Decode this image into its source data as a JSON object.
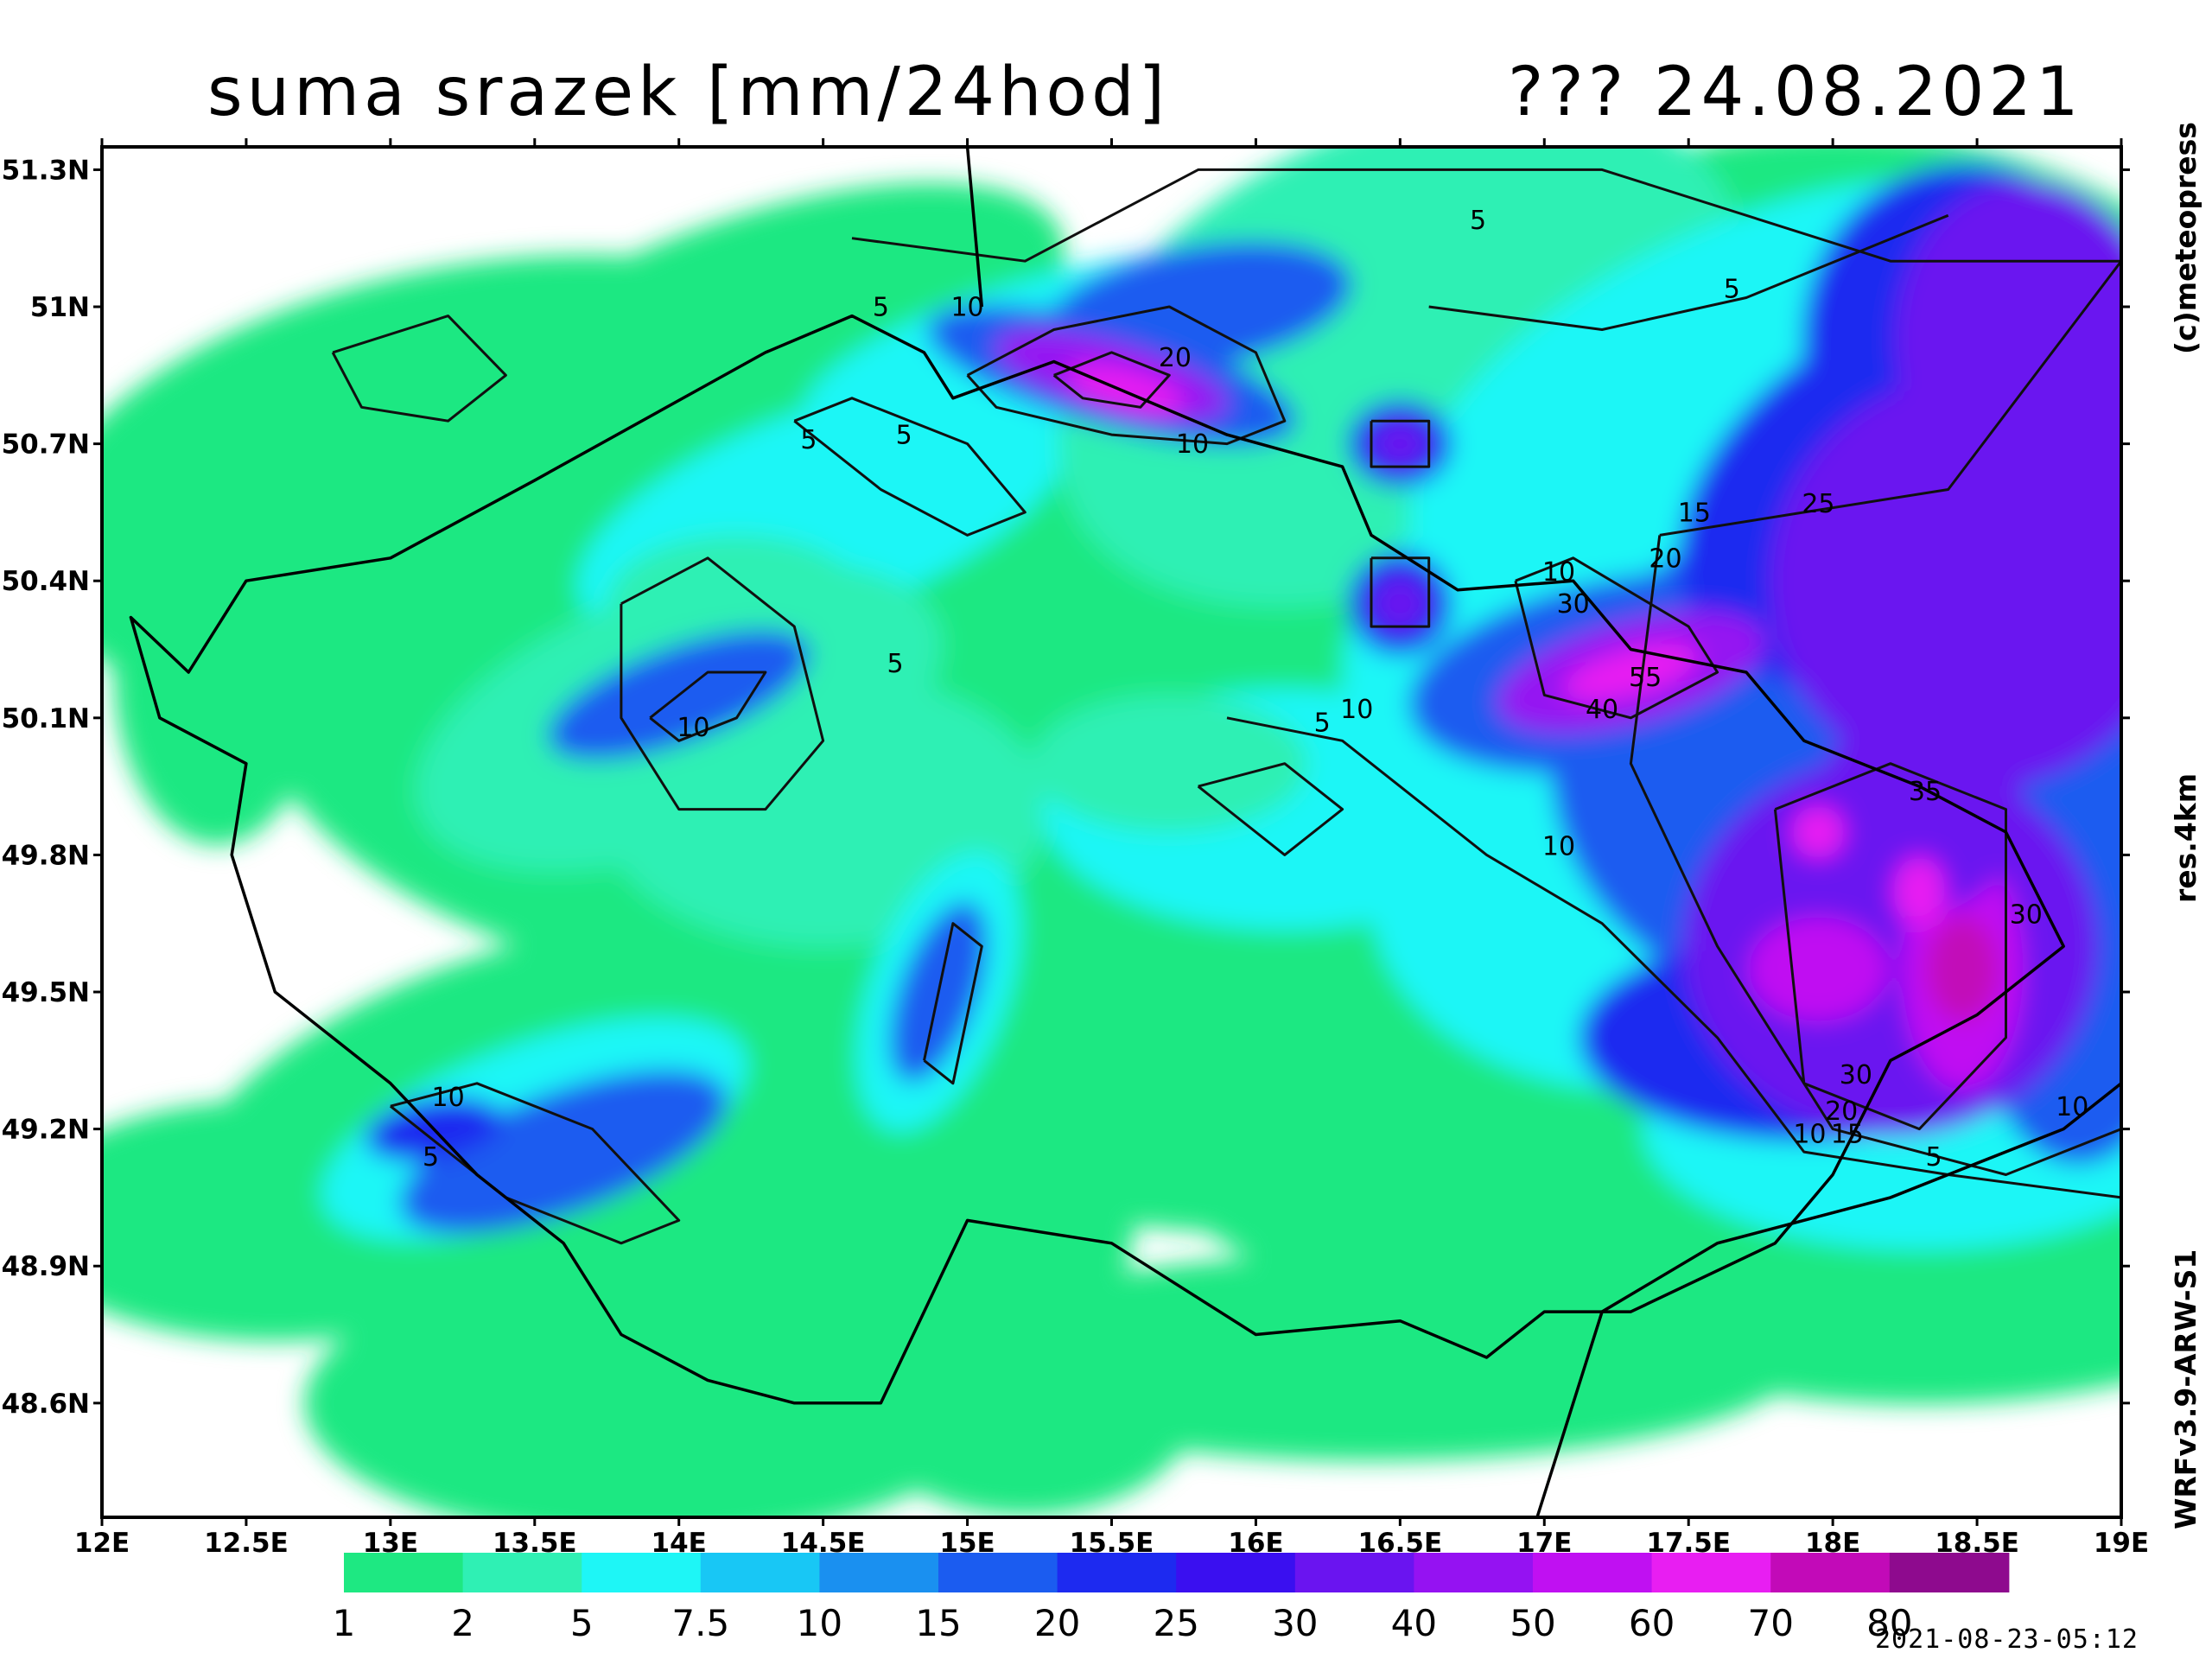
{
  "header": {
    "title_left": "suma srazek [mm/24hod]",
    "title_right": "??? 24.08.2021"
  },
  "axes": {
    "lat_ticks": [
      "51.3N",
      "51N",
      "50.7N",
      "50.4N",
      "50.1N",
      "49.8N",
      "49.5N",
      "49.2N",
      "48.9N",
      "48.6N"
    ],
    "lon_ticks": [
      "12E",
      "12.5E",
      "13E",
      "13.5E",
      "14E",
      "14.5E",
      "15E",
      "15.5E",
      "16E",
      "16.5E",
      "17E",
      "17.5E",
      "18E",
      "18.5E",
      "19E"
    ]
  },
  "side_labels": {
    "copyright": "(c)meteopress",
    "resolution": "res.4km",
    "model": "WRFv3.9-ARW-S1"
  },
  "timestamp": "2021-08-23-05:12",
  "legend": {
    "labels": [
      "1",
      "2",
      "5",
      "7.5",
      "10",
      "15",
      "20",
      "25",
      "30",
      "40",
      "50",
      "60",
      "70",
      "80"
    ],
    "colors": [
      "#1ee882",
      "#2ff0b4",
      "#1ef6f6",
      "#18c7f5",
      "#1a90f0",
      "#1b5cf0",
      "#1d2af0",
      "#3a0ff0",
      "#6a14f0",
      "#9512f2",
      "#c010f2",
      "#e81ef2",
      "#c20ab8",
      "#8e0a8e"
    ]
  },
  "contour_labels": [
    {
      "text": "5",
      "lon": 14.7,
      "lat": 50.98
    },
    {
      "text": "10",
      "lon": 15.0,
      "lat": 50.98
    },
    {
      "text": "20",
      "lon": 15.72,
      "lat": 50.87
    },
    {
      "text": "10",
      "lon": 15.78,
      "lat": 50.68
    },
    {
      "text": "5",
      "lon": 14.45,
      "lat": 50.69
    },
    {
      "text": "5",
      "lon": 14.78,
      "lat": 50.7
    },
    {
      "text": "5",
      "lon": 16.77,
      "lat": 51.17
    },
    {
      "text": "5",
      "lon": 17.65,
      "lat": 51.02
    },
    {
      "text": "15",
      "lon": 17.52,
      "lat": 50.53
    },
    {
      "text": "25",
      "lon": 17.95,
      "lat": 50.55
    },
    {
      "text": "20",
      "lon": 17.42,
      "lat": 50.43
    },
    {
      "text": "10",
      "lon": 17.05,
      "lat": 50.4
    },
    {
      "text": "30",
      "lon": 17.1,
      "lat": 50.33
    },
    {
      "text": "55",
      "lon": 17.35,
      "lat": 50.17
    },
    {
      "text": "40",
      "lon": 17.2,
      "lat": 50.1
    },
    {
      "text": "5",
      "lon": 14.75,
      "lat": 50.2
    },
    {
      "text": "10",
      "lon": 14.05,
      "lat": 50.06
    },
    {
      "text": "5",
      "lon": 16.23,
      "lat": 50.07
    },
    {
      "text": "10",
      "lon": 16.35,
      "lat": 50.1
    },
    {
      "text": "10",
      "lon": 17.05,
      "lat": 49.8
    },
    {
      "text": "35",
      "lon": 18.32,
      "lat": 49.92
    },
    {
      "text": "30",
      "lon": 18.67,
      "lat": 49.65
    },
    {
      "text": "30",
      "lon": 18.08,
      "lat": 49.3
    },
    {
      "text": "20",
      "lon": 18.03,
      "lat": 49.22
    },
    {
      "text": "10",
      "lon": 17.92,
      "lat": 49.17
    },
    {
      "text": "15",
      "lon": 18.05,
      "lat": 49.17
    },
    {
      "text": "5",
      "lon": 18.35,
      "lat": 49.12
    },
    {
      "text": "10",
      "lon": 18.83,
      "lat": 49.23
    },
    {
      "text": "10",
      "lon": 13.2,
      "lat": 49.25
    },
    {
      "text": "5",
      "lon": 13.14,
      "lat": 49.12
    }
  ]
}
